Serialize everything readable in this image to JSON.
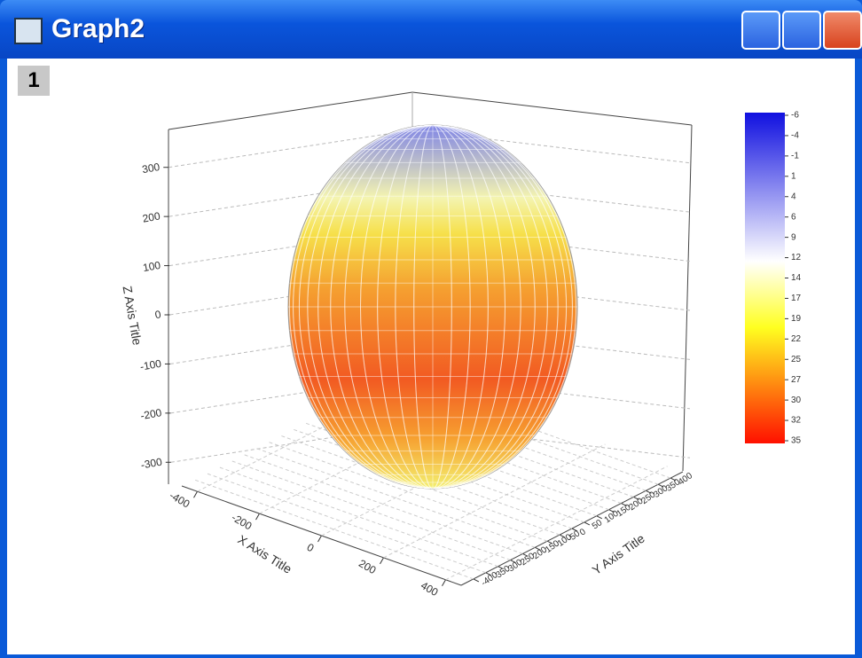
{
  "window": {
    "title": "Graph2",
    "layer": "1"
  },
  "chart_data": {
    "type": "surface3d",
    "z_label": "Z Axis Title",
    "x_label": "X Axis Title",
    "y_label": "Y Axis Title",
    "zlim": [
      -350,
      350
    ],
    "zticks": [
      -300,
      -200,
      -100,
      0,
      100,
      200,
      300
    ],
    "xlim": [
      -450,
      450
    ],
    "xticks": [
      -400,
      -200,
      0,
      200,
      400
    ],
    "ylim": [
      -450,
      450
    ],
    "yticks": [
      -400,
      -350,
      -300,
      -250,
      -200,
      -150,
      -100,
      -50,
      0,
      50,
      100,
      150,
      200,
      250,
      300,
      350,
      400
    ],
    "grid": true,
    "colorbar_levels": [
      -6,
      -4,
      -1,
      1,
      4,
      6,
      9,
      12,
      14,
      17,
      19,
      22,
      25,
      27,
      30,
      32,
      35
    ]
  }
}
